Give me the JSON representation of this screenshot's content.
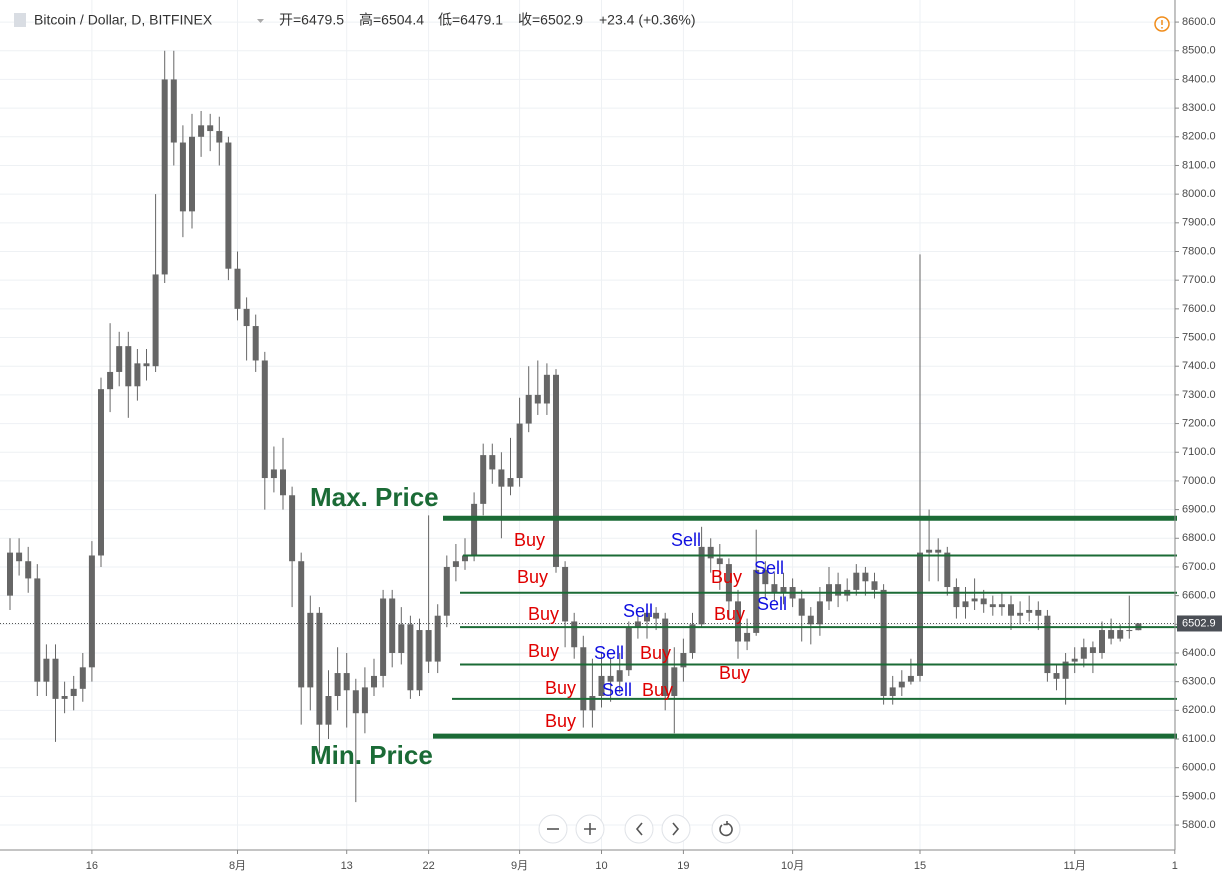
{
  "header": {
    "symbol": "Bitcoin / Dollar, D, BITFINEX",
    "open": "开=6479.5",
    "high": "高=6504.4",
    "low": "低=6479.1",
    "close": "收=6502.9",
    "change": "+23.4 (+0.36%)"
  },
  "chart_data": {
    "type": "candlestick",
    "color": "#666666",
    "categories": [
      null,
      null,
      null,
      null,
      null,
      null,
      null,
      null,
      null,
      "16",
      null,
      null,
      null,
      null,
      null,
      null,
      null,
      null,
      null,
      null,
      null,
      null,
      null,
      null,
      null,
      "8月",
      null,
      null,
      null,
      null,
      null,
      null,
      null,
      null,
      null,
      null,
      null,
      "13",
      null,
      null,
      null,
      null,
      null,
      null,
      null,
      null,
      "22",
      null,
      null,
      null,
      null,
      null,
      null,
      null,
      null,
      null,
      "9月",
      null,
      null,
      null,
      null,
      null,
      null,
      null,
      null,
      "10",
      null,
      null,
      null,
      null,
      null,
      null,
      null,
      null,
      "19",
      null,
      null,
      null,
      null,
      null,
      null,
      null,
      null,
      null,
      null,
      null,
      "10月",
      null,
      null,
      null,
      null,
      null,
      null,
      null,
      null,
      null,
      null,
      null,
      null,
      null,
      "15",
      null,
      null,
      null,
      null,
      null,
      null,
      null,
      null,
      null,
      null,
      null,
      null,
      null,
      null,
      null,
      null,
      "11月",
      null,
      null,
      null,
      null,
      null,
      null,
      null,
      null,
      null,
      null,
      "1"
    ],
    "open": [
      6600,
      6750,
      6720,
      6660,
      6300,
      6380,
      6240,
      6250,
      6275,
      6350,
      6740,
      7320,
      7380,
      7470,
      7330,
      7410,
      7400,
      7720,
      8400,
      8180,
      7940,
      8200,
      8240,
      8220,
      8180,
      7740,
      7600,
      7540,
      7420,
      7010,
      7040,
      6950,
      6720,
      6280,
      6540,
      6150,
      6250,
      6330,
      6270,
      6190,
      6280,
      6320,
      6590,
      6400,
      6500,
      6270,
      6480,
      6370,
      6530,
      6700,
      6720,
      6740,
      6920,
      7090,
      7040,
      6980,
      7010,
      7200,
      7300,
      7270,
      7370,
      6700,
      6510,
      6420,
      6200,
      6250,
      6320,
      6300,
      6340,
      6490,
      6510,
      6540,
      6520,
      6250,
      6350,
      6400,
      6500,
      6770,
      6730,
      6710,
      6580,
      6440,
      6470,
      6690,
      6640,
      6610,
      6630,
      6590,
      6530,
      6500,
      6580,
      6640,
      6600,
      6620,
      6680,
      6650,
      6620,
      6250,
      6280,
      6300,
      6320,
      6750,
      6760,
      6750,
      6630,
      6560,
      6580,
      6590,
      6570,
      6560,
      6570,
      6530,
      6540,
      6550,
      6530,
      6330,
      6310,
      6370,
      6380,
      6420,
      6400,
      6480,
      6450,
      6480,
      6479.5,
      null,
      null,
      null,
      null
    ],
    "high": [
      6800,
      6800,
      6770,
      6710,
      6430,
      6430,
      6300,
      6320,
      6400,
      6790,
      7360,
      7550,
      7520,
      7520,
      7460,
      7460,
      8000,
      8500,
      8500,
      8240,
      8280,
      8290,
      8280,
      8270,
      8200,
      7800,
      7640,
      7580,
      7450,
      7120,
      7150,
      6980,
      6750,
      6600,
      6560,
      6340,
      6420,
      6400,
      6310,
      6350,
      6380,
      6620,
      6620,
      6560,
      6530,
      6520,
      6880,
      6570,
      6740,
      6780,
      6800,
      6960,
      7130,
      7130,
      7100,
      7150,
      7290,
      7400,
      7420,
      7410,
      7390,
      6720,
      6540,
      6460,
      6380,
      6400,
      6380,
      6400,
      6510,
      6530,
      6560,
      6560,
      6540,
      6420,
      6450,
      6540,
      6840,
      6800,
      6780,
      6730,
      6620,
      6520,
      6830,
      6720,
      6680,
      6680,
      6660,
      6620,
      6560,
      6630,
      6700,
      6680,
      6660,
      6710,
      6700,
      6680,
      6640,
      6320,
      6340,
      6380,
      7790,
      6900,
      6800,
      6770,
      6660,
      6630,
      6660,
      6620,
      6600,
      6610,
      6600,
      6580,
      6600,
      6580,
      6550,
      6360,
      6400,
      6420,
      6450,
      6440,
      6510,
      6520,
      6500,
      6600,
      6504.4,
      null,
      null,
      null,
      null
    ],
    "low": [
      6550,
      6670,
      6610,
      6250,
      6250,
      6090,
      6190,
      6200,
      6230,
      6300,
      6700,
      7240,
      7330,
      7220,
      7280,
      7350,
      7380,
      7690,
      8100,
      7850,
      7880,
      8130,
      8150,
      8100,
      7700,
      7560,
      7420,
      7380,
      6900,
      6960,
      6900,
      6560,
      6150,
      6200,
      6050,
      6100,
      6200,
      6140,
      5880,
      6120,
      6250,
      6280,
      6350,
      6360,
      6240,
      6250,
      6330,
      6330,
      6490,
      6650,
      6690,
      6720,
      6880,
      6990,
      6800,
      6950,
      6980,
      7170,
      7230,
      7230,
      6680,
      6420,
      6380,
      6140,
      6140,
      6210,
      6230,
      6260,
      6320,
      6450,
      6450,
      6480,
      6200,
      6120,
      6300,
      6380,
      6490,
      6680,
      6620,
      6520,
      6380,
      6410,
      6460,
      6590,
      6580,
      6570,
      6560,
      6440,
      6430,
      6460,
      6550,
      6560,
      6580,
      6600,
      6600,
      6590,
      6220,
      6220,
      6250,
      6290,
      6300,
      6650,
      6650,
      6600,
      6520,
      6520,
      6550,
      6540,
      6530,
      6530,
      6480,
      6500,
      6510,
      6480,
      6300,
      6270,
      6220,
      6330,
      6350,
      6330,
      6380,
      6430,
      6440,
      6450,
      6479.1,
      null,
      null,
      null,
      null
    ],
    "close": [
      6750,
      6720,
      6660,
      6300,
      6380,
      6240,
      6250,
      6275,
      6350,
      6740,
      7320,
      7380,
      7470,
      7330,
      7410,
      7400,
      7720,
      8400,
      8180,
      7940,
      8200,
      8240,
      8220,
      8180,
      7740,
      7600,
      7540,
      7420,
      7010,
      7040,
      6950,
      6720,
      6280,
      6540,
      6150,
      6250,
      6330,
      6270,
      6190,
      6280,
      6320,
      6590,
      6400,
      6500,
      6270,
      6480,
      6370,
      6530,
      6700,
      6720,
      6740,
      6920,
      7090,
      7040,
      6980,
      7010,
      7200,
      7300,
      7270,
      7370,
      6700,
      6510,
      6420,
      6200,
      6250,
      6320,
      6300,
      6340,
      6490,
      6510,
      6540,
      6520,
      6250,
      6350,
      6400,
      6500,
      6770,
      6730,
      6710,
      6580,
      6440,
      6470,
      6690,
      6640,
      6610,
      6630,
      6590,
      6530,
      6500,
      6580,
      6640,
      6600,
      6620,
      6680,
      6650,
      6620,
      6250,
      6280,
      6300,
      6320,
      6750,
      6760,
      6750,
      6630,
      6560,
      6580,
      6590,
      6570,
      6560,
      6570,
      6530,
      6540,
      6550,
      6530,
      6330,
      6310,
      6370,
      6380,
      6420,
      6400,
      6480,
      6450,
      6480,
      6479.5,
      6502.9,
      null,
      null,
      null,
      null
    ],
    "last_price": {
      "value": 6502.9,
      "label": "6502.9"
    },
    "ylim": [
      5713,
      8677
    ],
    "yticks": [
      {
        "value": 5800,
        "label": "5800.0"
      },
      {
        "value": 5900,
        "label": "5900.0"
      },
      {
        "value": 6000,
        "label": "6000.0"
      },
      {
        "value": 6100,
        "label": "6100.0"
      },
      {
        "value": 6200,
        "label": "6200.0"
      },
      {
        "value": 6300,
        "label": "6300.0"
      },
      {
        "value": 6400,
        "label": "6400.0"
      },
      {
        "value": 6500,
        "label": "6500.0"
      },
      {
        "value": 6600,
        "label": "6600.0"
      },
      {
        "value": 6700,
        "label": "6700.0"
      },
      {
        "value": 6800,
        "label": "6800.0"
      },
      {
        "value": 6900,
        "label": "6900.0"
      },
      {
        "value": 7000,
        "label": "7000.0"
      },
      {
        "value": 7100,
        "label": "7100.0"
      },
      {
        "value": 7200,
        "label": "7200.0"
      },
      {
        "value": 7300,
        "label": "7300.0"
      },
      {
        "value": 7400,
        "label": "7400.0"
      },
      {
        "value": 7500,
        "label": "7500.0"
      },
      {
        "value": 7600,
        "label": "7600.0"
      },
      {
        "value": 7700,
        "label": "7700.0"
      },
      {
        "value": 7800,
        "label": "7800.0"
      },
      {
        "value": 7900,
        "label": "7900.0"
      },
      {
        "value": 8000,
        "label": "8000.0"
      },
      {
        "value": 8100,
        "label": "8100.0"
      },
      {
        "value": 8200,
        "label": "8200.0"
      },
      {
        "value": 8300,
        "label": "8300.0"
      },
      {
        "value": 8400,
        "label": "8400.0"
      },
      {
        "value": 8500,
        "label": "8500.0"
      },
      {
        "value": 8600,
        "label": "8600.0"
      }
    ],
    "grid": true,
    "levels": {
      "color": "#1b6b36",
      "values": [
        6870,
        6740,
        6610,
        6490,
        6360,
        6240,
        6110
      ]
    },
    "annotations": [
      {
        "text": "Max. Price",
        "color": "#1b6b36"
      },
      {
        "text": "Min. Price",
        "color": "#1b6b36"
      },
      {
        "text": "Buy",
        "color": "#e00000"
      },
      {
        "text": "Buy",
        "color": "#e00000"
      },
      {
        "text": "Buy",
        "color": "#e00000"
      },
      {
        "text": "Buy",
        "color": "#e00000"
      },
      {
        "text": "Buy",
        "color": "#e00000"
      },
      {
        "text": "Buy",
        "color": "#e00000"
      },
      {
        "text": "Buy",
        "color": "#e00000"
      },
      {
        "text": "Buy",
        "color": "#e00000"
      },
      {
        "text": "Buy",
        "color": "#e00000"
      },
      {
        "text": "Buy",
        "color": "#e00000"
      },
      {
        "text": "Buy",
        "color": "#e00000"
      },
      {
        "text": "Sell",
        "color": "#1010e0"
      },
      {
        "text": "Sell",
        "color": "#1010e0"
      },
      {
        "text": "Sell",
        "color": "#1010e0"
      },
      {
        "text": "Sell",
        "color": "#1010e0"
      },
      {
        "text": "Sell",
        "color": "#1010e0"
      },
      {
        "text": "Sell",
        "color": "#1010e0"
      }
    ]
  }
}
